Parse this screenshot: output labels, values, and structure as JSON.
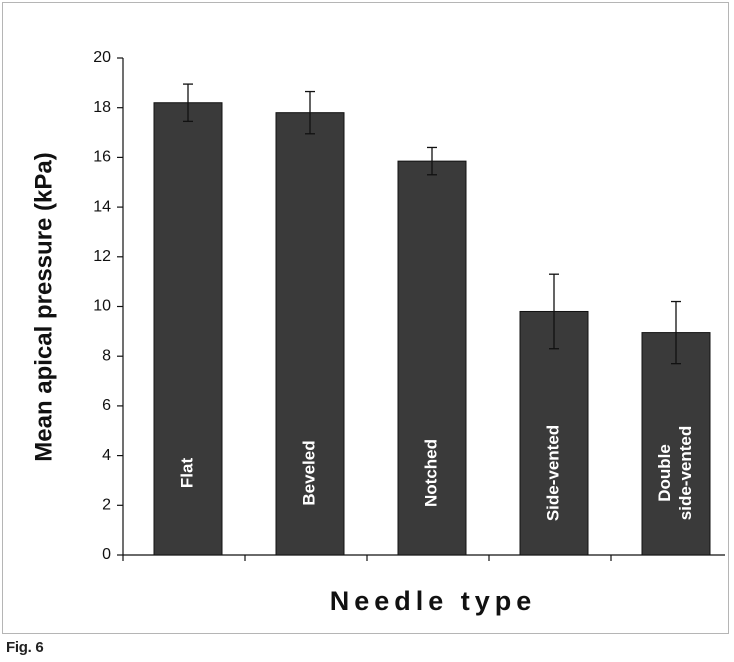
{
  "caption": "Fig. 6",
  "chart_data": {
    "type": "bar",
    "categories": [
      [
        "Flat"
      ],
      [
        "Beveled"
      ],
      [
        "Notched"
      ],
      [
        "Side-vented"
      ],
      [
        "Double",
        "side-vented"
      ]
    ],
    "values": [
      18.2,
      17.8,
      15.85,
      9.8,
      8.95
    ],
    "error": [
      0.75,
      0.85,
      0.55,
      1.5,
      1.25
    ],
    "xlabel": "Needle type",
    "ylabel": "Mean apical pressure (kPa)",
    "ylim": [
      0,
      20
    ],
    "yticks": [
      0,
      2,
      4,
      6,
      8,
      10,
      12,
      14,
      16,
      18,
      20
    ],
    "bar_color": "#3a3a3a",
    "bar_label_color": "#ffffff",
    "labels_inside_bars": true,
    "grid": false
  }
}
